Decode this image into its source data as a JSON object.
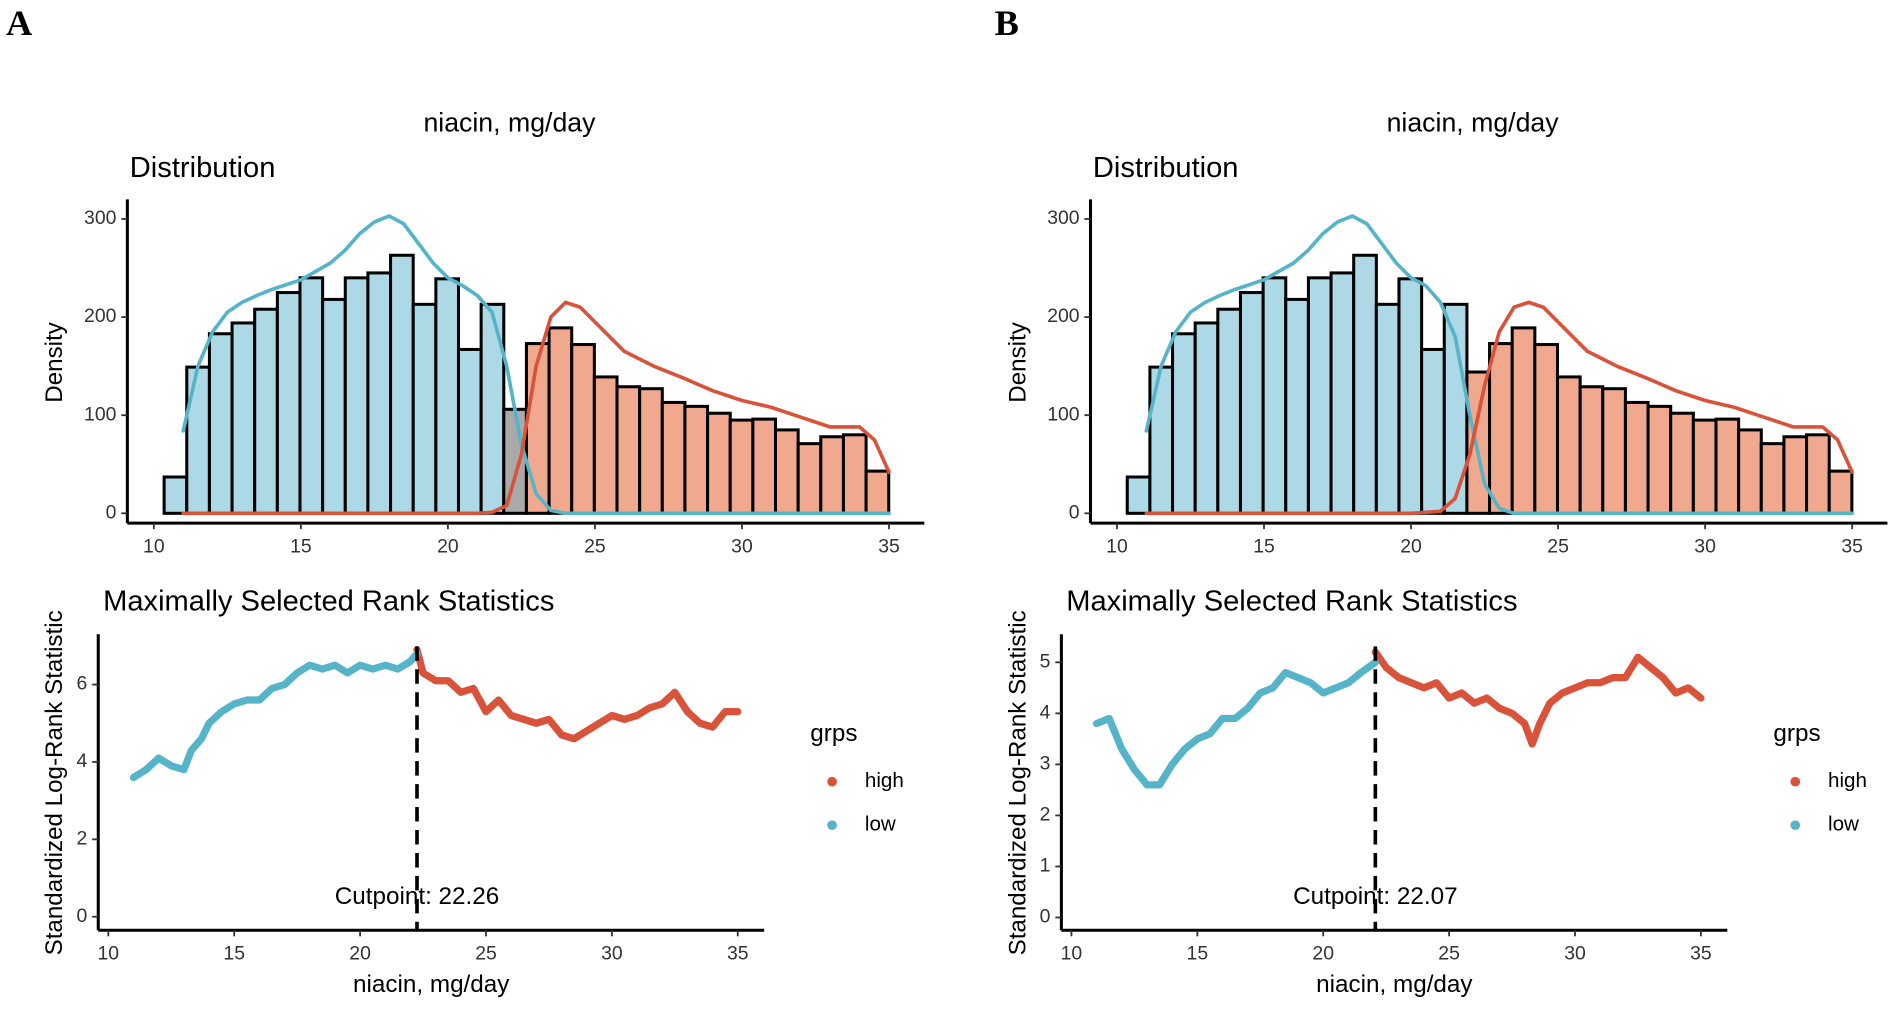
{
  "panels": [
    "A",
    "B"
  ],
  "chart_data": [
    {
      "type": "histogram",
      "title": "niacin, mg/day",
      "subtitle": "Distribution",
      "ylabel": "Density",
      "bins": [
        10.35,
        11.12,
        11.89,
        12.66,
        13.43,
        14.2,
        14.97,
        15.74,
        16.51,
        17.28,
        18.05,
        18.82,
        19.59,
        20.36,
        21.13,
        21.9,
        22.67,
        23.44,
        24.21,
        24.98,
        25.75,
        26.52,
        27.29,
        28.06,
        28.83,
        29.6,
        30.37,
        31.14,
        31.91,
        32.68,
        33.45,
        34.22,
        34.99
      ],
      "values": [
        37,
        149,
        183,
        194,
        208,
        225,
        240,
        218,
        240,
        245,
        263,
        213,
        239,
        167,
        213,
        106,
        173,
        189,
        172,
        139,
        129,
        127,
        113,
        109,
        102,
        95,
        96,
        85,
        71,
        78,
        80,
        43
      ],
      "colors": [
        "#add8e6",
        "#add8e6",
        "#add8e6",
        "#add8e6",
        "#add8e6",
        "#add8e6",
        "#add8e6",
        "#add8e6",
        "#add8e6",
        "#add8e6",
        "#add8e6",
        "#add8e6",
        "#add8e6",
        "#add8e6",
        "#add8e6",
        "#a9a9a9",
        "#f0a98f",
        "#f0a98f",
        "#f0a98f",
        "#f0a98f",
        "#f0a98f",
        "#f0a98f",
        "#f0a98f",
        "#f0a98f",
        "#f0a98f",
        "#f0a98f",
        "#f0a98f",
        "#f0a98f",
        "#f0a98f",
        "#f0a98f",
        "#f0a98f",
        "#f0a98f"
      ],
      "series": [
        {
          "color": "#56b4c9",
          "x": [
            11,
            11.5,
            12,
            12.5,
            13,
            13.5,
            14,
            15,
            16,
            16.5,
            17,
            17.5,
            18,
            18.5,
            19,
            19.5,
            20,
            20.5,
            21,
            21.5,
            22,
            22.5,
            23,
            23.5,
            24,
            26,
            28,
            30,
            32,
            34,
            35
          ],
          "values": [
            84,
            150,
            185,
            205,
            215,
            222,
            228,
            238,
            255,
            268,
            285,
            297,
            303,
            295,
            275,
            255,
            240,
            232,
            222,
            205,
            150,
            70,
            20,
            3,
            0,
            0,
            0,
            0,
            0,
            0,
            0
          ]
        },
        {
          "color": "#d9533a",
          "x": [
            11,
            20,
            21,
            21.5,
            22,
            22.5,
            23,
            23.5,
            24,
            24.5,
            25,
            26,
            27,
            28,
            29,
            30,
            31,
            32,
            33,
            34,
            34.5,
            35
          ],
          "values": [
            0,
            0,
            0,
            1,
            8,
            60,
            150,
            200,
            215,
            210,
            195,
            165,
            150,
            138,
            125,
            115,
            108,
            98,
            88,
            88,
            75,
            42
          ]
        }
      ],
      "xlim": [
        9.1,
        36.2
      ],
      "xticks": [
        10,
        15,
        20,
        25,
        30,
        35
      ],
      "ylim": [
        -10,
        320
      ],
      "yticks": [
        0,
        100,
        200,
        300
      ]
    },
    {
      "type": "line",
      "title": "Maximally Selected Rank Statistics",
      "ylabel": "Standardized Log-Rank Statistic",
      "xlabel": "niacin, mg/day",
      "cutpoint": 22.26,
      "annotation": "Cutpoint: 22.26",
      "legend_title": "grps",
      "series": [
        {
          "name": "high",
          "color": "#d9533a",
          "x": [
            22.26,
            22.5,
            23,
            23.5,
            24,
            24.5,
            25,
            25.5,
            26,
            26.5,
            27,
            27.5,
            28,
            28.5,
            29,
            29.5,
            30,
            30.5,
            31,
            31.5,
            32,
            32.5,
            33,
            33.5,
            34,
            34.5,
            35
          ],
          "values": [
            6.9,
            6.3,
            6.1,
            6.1,
            5.8,
            5.9,
            5.3,
            5.6,
            5.2,
            5.1,
            5.0,
            5.1,
            4.7,
            4.6,
            4.8,
            5.0,
            5.2,
            5.1,
            5.2,
            5.4,
            5.5,
            5.8,
            5.3,
            5.0,
            4.9,
            5.3,
            5.3
          ]
        },
        {
          "name": "low",
          "color": "#56b4c9",
          "x": [
            11,
            11.5,
            12,
            12.5,
            13,
            13.3,
            13.7,
            14,
            14.5,
            15,
            15.5,
            16,
            16.5,
            17,
            17.5,
            18,
            18.5,
            19,
            19.5,
            20,
            20.5,
            21,
            21.5,
            22,
            22.26
          ],
          "values": [
            3.6,
            3.8,
            4.1,
            3.9,
            3.8,
            4.3,
            4.6,
            5.0,
            5.3,
            5.5,
            5.6,
            5.6,
            5.9,
            6.0,
            6.3,
            6.5,
            6.4,
            6.5,
            6.3,
            6.5,
            6.4,
            6.5,
            6.4,
            6.6,
            6.8
          ]
        }
      ],
      "xlim": [
        9.6,
        36.05
      ],
      "xticks": [
        10,
        15,
        20,
        25,
        30,
        35
      ],
      "ylim": [
        -0.35,
        7.3
      ],
      "yticks": [
        0,
        2,
        4,
        6
      ]
    },
    {
      "type": "histogram",
      "title": "niacin, mg/day",
      "subtitle": "Distribution",
      "ylabel": "Density",
      "bins": [
        10.35,
        11.12,
        11.89,
        12.66,
        13.43,
        14.2,
        14.97,
        15.74,
        16.51,
        17.28,
        18.05,
        18.82,
        19.59,
        20.36,
        21.13,
        21.9,
        22.67,
        23.44,
        24.21,
        24.98,
        25.75,
        26.52,
        27.29,
        28.06,
        28.83,
        29.6,
        30.37,
        31.14,
        31.91,
        32.68,
        33.45,
        34.22,
        34.99
      ],
      "values": [
        37,
        149,
        183,
        194,
        208,
        225,
        240,
        218,
        240,
        245,
        263,
        213,
        239,
        167,
        213,
        144,
        173,
        189,
        172,
        139,
        129,
        127,
        113,
        109,
        102,
        95,
        96,
        85,
        71,
        78,
        80,
        43
      ],
      "colors": [
        "#add8e6",
        "#add8e6",
        "#add8e6",
        "#add8e6",
        "#add8e6",
        "#add8e6",
        "#add8e6",
        "#add8e6",
        "#add8e6",
        "#add8e6",
        "#add8e6",
        "#add8e6",
        "#add8e6",
        "#add8e6",
        "#add8e6",
        "#f0a98f",
        "#f0a98f",
        "#f0a98f",
        "#f0a98f",
        "#f0a98f",
        "#f0a98f",
        "#f0a98f",
        "#f0a98f",
        "#f0a98f",
        "#f0a98f",
        "#f0a98f",
        "#f0a98f",
        "#f0a98f",
        "#f0a98f",
        "#f0a98f",
        "#f0a98f",
        "#f0a98f"
      ],
      "series": [
        {
          "color": "#56b4c9",
          "x": [
            11,
            11.5,
            12,
            12.5,
            13,
            13.5,
            14,
            15,
            16,
            16.5,
            17,
            17.5,
            18,
            18.5,
            19,
            19.5,
            20,
            20.5,
            21,
            21.5,
            22,
            22.5,
            23,
            23.5,
            24,
            26,
            28,
            30,
            32,
            34,
            35
          ],
          "values": [
            84,
            150,
            185,
            205,
            215,
            222,
            228,
            238,
            255,
            268,
            285,
            297,
            303,
            295,
            275,
            255,
            240,
            232,
            215,
            180,
            100,
            30,
            5,
            0,
            0,
            0,
            0,
            0,
            0,
            0,
            0
          ]
        },
        {
          "color": "#d9533a",
          "x": [
            11,
            20,
            21,
            21.5,
            22,
            22.5,
            23,
            23.5,
            24,
            24.5,
            25,
            26,
            27,
            28,
            29,
            30,
            31,
            32,
            33,
            34,
            34.5,
            35
          ],
          "values": [
            0,
            0,
            2,
            15,
            60,
            130,
            185,
            210,
            215,
            210,
            195,
            165,
            150,
            138,
            125,
            115,
            108,
            98,
            88,
            88,
            75,
            42
          ]
        }
      ],
      "xlim": [
        9.1,
        36.2
      ],
      "xticks": [
        10,
        15,
        20,
        25,
        30,
        35
      ],
      "ylim": [
        -10,
        320
      ],
      "yticks": [
        0,
        100,
        200,
        300
      ]
    },
    {
      "type": "line",
      "title": "Maximally Selected Rank Statistics",
      "ylabel": "Standardized Log-Rank Statistic",
      "xlabel": "niacin, mg/day",
      "cutpoint": 22.07,
      "annotation": "Cutpoint: 22.07",
      "legend_title": "grps",
      "series": [
        {
          "name": "high",
          "color": "#d9533a",
          "x": [
            22.07,
            22.5,
            23,
            23.5,
            24,
            24.5,
            25,
            25.5,
            26,
            26.5,
            27,
            27.5,
            28,
            28.3,
            28.6,
            29,
            29.5,
            30,
            30.5,
            31,
            31.5,
            32,
            32.5,
            33,
            33.5,
            34,
            34.5,
            35
          ],
          "values": [
            5.2,
            4.9,
            4.7,
            4.6,
            4.5,
            4.6,
            4.3,
            4.4,
            4.2,
            4.3,
            4.1,
            4.0,
            3.8,
            3.4,
            3.8,
            4.2,
            4.4,
            4.5,
            4.6,
            4.6,
            4.7,
            4.7,
            5.1,
            4.9,
            4.7,
            4.4,
            4.5,
            4.3
          ]
        },
        {
          "name": "low",
          "color": "#56b4c9",
          "x": [
            11,
            11.5,
            12,
            12.5,
            13,
            13.5,
            14,
            14.5,
            15,
            15.5,
            16,
            16.5,
            17,
            17.5,
            18,
            18.5,
            19,
            19.5,
            20,
            20.5,
            21,
            21.5,
            22.07
          ],
          "values": [
            3.8,
            3.9,
            3.3,
            2.9,
            2.6,
            2.6,
            3.0,
            3.3,
            3.5,
            3.6,
            3.9,
            3.9,
            4.1,
            4.4,
            4.5,
            4.8,
            4.7,
            4.6,
            4.4,
            4.5,
            4.6,
            4.8,
            5.0
          ]
        }
      ],
      "xlim": [
        9.6,
        36.05
      ],
      "xticks": [
        10,
        15,
        20,
        25,
        30,
        35
      ],
      "ylim": [
        -0.25,
        5.55
      ],
      "yticks": [
        0,
        1,
        2,
        3,
        4,
        5
      ]
    }
  ]
}
